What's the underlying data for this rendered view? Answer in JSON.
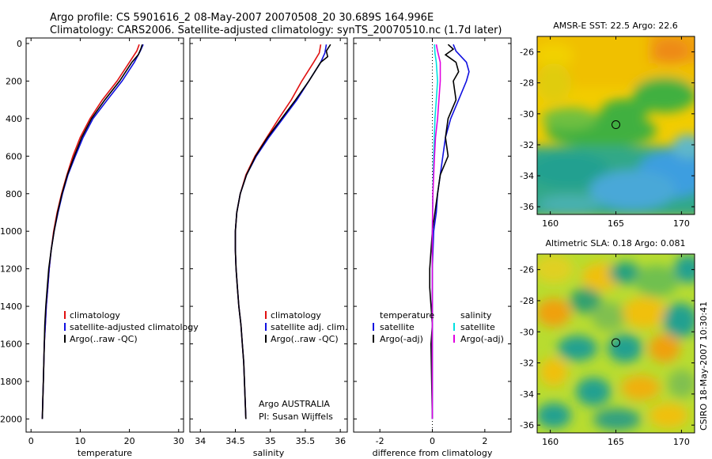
{
  "title_line1": "Argo profile: CS 5901616_2 08-May-2007 20070508_20 30.689S 164.996E",
  "title_line2": "Climatology: CARS2006. Satellite-adjusted climatology: synTS_20070510.nc (1.7d later)",
  "credit_text": "Argo AUSTRALIA",
  "pi_text": "PI: Susan Wijffels",
  "side_text": "CSIRO 18-May-2007 10:30:41",
  "colors": {
    "clim": "#e01010",
    "sat": "#1010e0",
    "argo": "#000000",
    "sat_sal": "#00e0e0",
    "argo_sal": "#e000e0"
  },
  "chart_data": [
    {
      "type": "line",
      "xlabel": "temperature",
      "xlim": [
        -1,
        31
      ],
      "ylim": [
        0,
        2070
      ],
      "xticks": [
        0,
        10,
        20,
        30
      ],
      "yticks": [
        0,
        200,
        400,
        600,
        800,
        1000,
        1200,
        1400,
        1600,
        1800,
        2000
      ],
      "legend": [
        "climatology",
        "satellite-adjusted climatology",
        "Argo(..raw -QC)"
      ],
      "series": [
        {
          "name": "climatology",
          "color": "#e01010",
          "points": [
            [
              22.0,
              5
            ],
            [
              21.5,
              40
            ],
            [
              20.0,
              100
            ],
            [
              17.5,
              200
            ],
            [
              14.5,
              300
            ],
            [
              12.0,
              400
            ],
            [
              10.0,
              500
            ],
            [
              8.5,
              600
            ],
            [
              7.3,
              700
            ],
            [
              6.2,
              800
            ],
            [
              5.3,
              900
            ],
            [
              4.6,
              1000
            ],
            [
              4.1,
              1100
            ],
            [
              3.7,
              1200
            ],
            [
              3.4,
              1300
            ],
            [
              3.1,
              1400
            ],
            [
              2.9,
              1500
            ],
            [
              2.7,
              1600
            ],
            [
              2.6,
              1700
            ],
            [
              2.5,
              1800
            ],
            [
              2.4,
              1900
            ],
            [
              2.3,
              2000
            ]
          ]
        },
        {
          "name": "satellite-adjusted climatology",
          "color": "#1010e0",
          "points": [
            [
              22.8,
              5
            ],
            [
              22.2,
              40
            ],
            [
              21.0,
              100
            ],
            [
              18.5,
              200
            ],
            [
              15.5,
              300
            ],
            [
              12.6,
              400
            ],
            [
              10.6,
              500
            ],
            [
              9.0,
              600
            ],
            [
              7.5,
              700
            ],
            [
              6.4,
              800
            ],
            [
              5.5,
              900
            ],
            [
              4.7,
              1000
            ],
            [
              4.1,
              1100
            ],
            [
              3.7,
              1200
            ],
            [
              3.4,
              1300
            ],
            [
              3.1,
              1400
            ],
            [
              2.9,
              1500
            ],
            [
              2.7,
              1600
            ],
            [
              2.6,
              1700
            ],
            [
              2.5,
              1800
            ],
            [
              2.4,
              1900
            ],
            [
              2.3,
              2000
            ]
          ]
        },
        {
          "name": "Argo(..raw -QC)",
          "color": "#000000",
          "points": [
            [
              22.6,
              5
            ],
            [
              22.3,
              30
            ],
            [
              21.8,
              60
            ],
            [
              20.5,
              100
            ],
            [
              18.0,
              200
            ],
            [
              15.0,
              300
            ],
            [
              12.3,
              400
            ],
            [
              10.3,
              500
            ],
            [
              8.8,
              600
            ],
            [
              7.4,
              700
            ],
            [
              6.3,
              800
            ],
            [
              5.4,
              900
            ],
            [
              4.7,
              1000
            ],
            [
              4.1,
              1100
            ],
            [
              3.6,
              1200
            ],
            [
              3.3,
              1300
            ],
            [
              3.0,
              1400
            ],
            [
              2.8,
              1500
            ],
            [
              2.7,
              1600
            ],
            [
              2.6,
              1700
            ],
            [
              2.5,
              1800
            ],
            [
              2.4,
              1900
            ],
            [
              2.3,
              2000
            ]
          ]
        }
      ]
    },
    {
      "type": "line",
      "xlabel": "salinity",
      "xlim": [
        33.85,
        36.1
      ],
      "ylim": [
        0,
        2070
      ],
      "xticks": [
        34,
        34.5,
        35,
        35.5,
        36
      ],
      "yticks": [
        0,
        200,
        400,
        600,
        800,
        1000,
        1200,
        1400,
        1600,
        1800,
        2000
      ],
      "legend": [
        "climatology",
        "satellite adj. clim.",
        "Argo(..raw -QC)"
      ],
      "series": [
        {
          "name": "climatology",
          "color": "#e01010",
          "points": [
            [
              35.72,
              5
            ],
            [
              35.7,
              50
            ],
            [
              35.62,
              100
            ],
            [
              35.45,
              200
            ],
            [
              35.3,
              300
            ],
            [
              35.12,
              400
            ],
            [
              34.95,
              500
            ],
            [
              34.78,
              600
            ],
            [
              34.65,
              700
            ],
            [
              34.57,
              800
            ],
            [
              34.52,
              900
            ],
            [
              34.5,
              1000
            ],
            [
              34.5,
              1100
            ],
            [
              34.51,
              1200
            ],
            [
              34.53,
              1300
            ],
            [
              34.55,
              1400
            ],
            [
              34.58,
              1500
            ],
            [
              34.6,
              1600
            ],
            [
              34.62,
              1700
            ],
            [
              34.63,
              1800
            ],
            [
              34.64,
              1900
            ],
            [
              34.65,
              2000
            ]
          ]
        },
        {
          "name": "satellite adj. clim.",
          "color": "#1010e0",
          "points": [
            [
              35.8,
              5
            ],
            [
              35.78,
              50
            ],
            [
              35.72,
              100
            ],
            [
              35.55,
              200
            ],
            [
              35.38,
              300
            ],
            [
              35.18,
              400
            ],
            [
              34.98,
              500
            ],
            [
              34.8,
              600
            ],
            [
              34.66,
              700
            ],
            [
              34.57,
              800
            ],
            [
              34.52,
              900
            ],
            [
              34.5,
              1000
            ],
            [
              34.5,
              1100
            ],
            [
              34.51,
              1200
            ],
            [
              34.53,
              1300
            ],
            [
              34.55,
              1400
            ],
            [
              34.58,
              1500
            ],
            [
              34.6,
              1600
            ],
            [
              34.62,
              1700
            ],
            [
              34.63,
              1800
            ],
            [
              34.64,
              1900
            ],
            [
              34.65,
              2000
            ]
          ]
        },
        {
          "name": "Argo(..raw -QC)",
          "color": "#000000",
          "points": [
            [
              35.86,
              5
            ],
            [
              35.8,
              40
            ],
            [
              35.82,
              70
            ],
            [
              35.72,
              100
            ],
            [
              35.55,
              200
            ],
            [
              35.36,
              300
            ],
            [
              35.16,
              400
            ],
            [
              34.96,
              500
            ],
            [
              34.79,
              600
            ],
            [
              34.66,
              700
            ],
            [
              34.57,
              800
            ],
            [
              34.52,
              900
            ],
            [
              34.5,
              1000
            ],
            [
              34.5,
              1100
            ],
            [
              34.51,
              1200
            ],
            [
              34.53,
              1300
            ],
            [
              34.55,
              1400
            ],
            [
              34.58,
              1500
            ],
            [
              34.6,
              1600
            ],
            [
              34.62,
              1700
            ],
            [
              34.63,
              1800
            ],
            [
              34.64,
              1900
            ],
            [
              34.65,
              2000
            ]
          ]
        }
      ]
    },
    {
      "type": "line",
      "xlabel": "difference from climatology",
      "xlim": [
        -3,
        3
      ],
      "ylim": [
        0,
        2070
      ],
      "xticks": [
        -2,
        0,
        2
      ],
      "yticks": [
        0,
        200,
        400,
        600,
        800,
        1000,
        1200,
        1400,
        1600,
        1800,
        2000
      ],
      "legend_temp": "temperature",
      "legend_sal": "salinity",
      "legend": [
        "satellite",
        "Argo(-adj)",
        "satellite",
        "Argo(-adj)"
      ],
      "series": [
        {
          "name": "satellite",
          "color": "#1010e0",
          "points": [
            [
              0.8,
              5
            ],
            [
              0.9,
              40
            ],
            [
              1.3,
              100
            ],
            [
              1.4,
              150
            ],
            [
              1.3,
              200
            ],
            [
              1.0,
              300
            ],
            [
              0.7,
              400
            ],
            [
              0.5,
              500
            ],
            [
              0.4,
              600
            ],
            [
              0.3,
              700
            ],
            [
              0.2,
              800
            ],
            [
              0.15,
              900
            ],
            [
              0.05,
              1000
            ],
            [
              0.0,
              1200
            ],
            [
              0.0,
              1600
            ],
            [
              0.0,
              2000
            ]
          ]
        },
        {
          "name": "Argo(-adj)",
          "color": "#000000",
          "points": [
            [
              0.6,
              5
            ],
            [
              0.8,
              30
            ],
            [
              0.5,
              60
            ],
            [
              0.9,
              100
            ],
            [
              1.0,
              150
            ],
            [
              0.8,
              200
            ],
            [
              0.9,
              300
            ],
            [
              0.6,
              400
            ],
            [
              0.5,
              500
            ],
            [
              0.6,
              600
            ],
            [
              0.3,
              700
            ],
            [
              0.2,
              800
            ],
            [
              0.1,
              900
            ],
            [
              0.0,
              1000
            ],
            [
              -0.1,
              1200
            ],
            [
              -0.1,
              1300
            ],
            [
              0.0,
              1500
            ],
            [
              -0.05,
              1600
            ],
            [
              0.0,
              2000
            ]
          ]
        },
        {
          "name": "satellite",
          "color": "#00e0e0",
          "points": [
            [
              0.08,
              5
            ],
            [
              0.1,
              50
            ],
            [
              0.15,
              100
            ],
            [
              0.2,
              200
            ],
            [
              0.15,
              300
            ],
            [
              0.1,
              400
            ],
            [
              0.05,
              600
            ],
            [
              0.02,
              800
            ],
            [
              0.0,
              1000
            ],
            [
              0.0,
              1500
            ],
            [
              0.0,
              2000
            ]
          ]
        },
        {
          "name": "Argo(-adj)",
          "color": "#e000e0",
          "points": [
            [
              0.15,
              5
            ],
            [
              0.2,
              40
            ],
            [
              0.3,
              100
            ],
            [
              0.3,
              200
            ],
            [
              0.25,
              300
            ],
            [
              0.2,
              400
            ],
            [
              0.12,
              500
            ],
            [
              0.08,
              600
            ],
            [
              0.05,
              700
            ],
            [
              0.02,
              800
            ],
            [
              0.0,
              1000
            ],
            [
              0.0,
              2000
            ]
          ]
        }
      ]
    },
    {
      "type": "heatmap",
      "title": "AMSR-E SST: 22.5 Argo: 22.6",
      "xlim": [
        159,
        171
      ],
      "ylim": [
        -36.5,
        -25
      ],
      "xticks": [
        160,
        165,
        170
      ],
      "yticks": [
        -26,
        -28,
        -30,
        -32,
        -34,
        -36
      ],
      "marker": {
        "x": 165.0,
        "y": -30.7
      }
    },
    {
      "type": "heatmap",
      "title": "Altimetric SLA: 0.18 Argo: 0.081",
      "xlim": [
        159,
        171
      ],
      "ylim": [
        -36.5,
        -25
      ],
      "xticks": [
        160,
        165,
        170
      ],
      "yticks": [
        -26,
        -28,
        -30,
        -32,
        -34,
        -36
      ],
      "marker": {
        "x": 165.0,
        "y": -30.7
      }
    }
  ]
}
